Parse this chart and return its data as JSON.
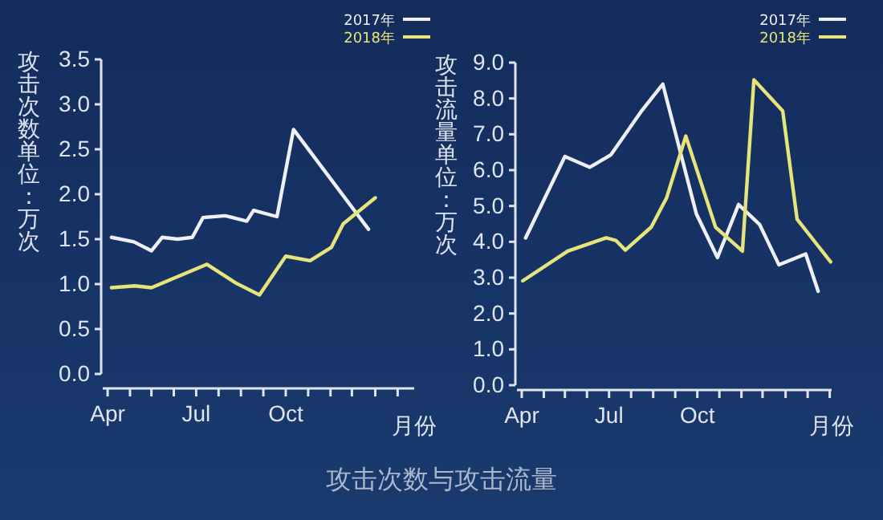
{
  "chart_data": [
    {
      "type": "line",
      "title": "攻击次数与攻击流量",
      "ylabel": "攻击次数单位：万次",
      "xlabel": "月份",
      "legend": "top right",
      "xlim": [
        "2017-03-27",
        "2018-02-10"
      ],
      "xticks": [
        {
          "value": "2017-04-01",
          "label": "Apr"
        },
        {
          "value": "2017-04-24",
          "label": null
        },
        {
          "value": "2017-05-16",
          "label": null
        },
        {
          "value": "2017-06-08",
          "label": null
        },
        {
          "value": "2017-07-01",
          "label": "Jul"
        },
        {
          "value": "2017-07-24",
          "label": null
        },
        {
          "value": "2017-08-16",
          "label": null
        },
        {
          "value": "2017-09-08",
          "label": null
        },
        {
          "value": "2017-10-01",
          "label": "Oct"
        },
        {
          "value": "2017-10-24",
          "label": null
        },
        {
          "value": "2017-11-16",
          "label": null
        },
        {
          "value": "2017-12-08",
          "label": null
        },
        {
          "value": "2018-01-01",
          "label": null
        },
        {
          "value": "2018-01-24",
          "label": null
        }
      ],
      "ylim": [
        0,
        3.5
      ],
      "yticks": [
        {
          "value": 0,
          "label": "0.0"
        },
        {
          "value": 0.5,
          "label": "0.5"
        },
        {
          "value": 1,
          "label": "1.0"
        },
        {
          "value": 1.5,
          "label": "1.5"
        },
        {
          "value": 2,
          "label": "2.0"
        },
        {
          "value": 2.5,
          "label": "2.5"
        },
        {
          "value": 3,
          "label": "3.0"
        },
        {
          "value": 3.5,
          "label": "3.5"
        }
      ],
      "series": [
        {
          "name": "2017年",
          "color": "#eef0f6",
          "x": [
            "2017-04-05",
            "2017-04-28",
            "2017-05-16",
            "2017-05-27",
            "2017-06-12",
            "2017-06-27",
            "2017-07-08",
            "2017-07-31",
            "2017-08-22",
            "2017-08-29",
            "2017-09-22",
            "2017-10-09",
            "2017-12-25"
          ],
          "values": [
            1.52,
            1.47,
            1.37,
            1.52,
            1.5,
            1.52,
            1.74,
            1.76,
            1.7,
            1.82,
            1.75,
            2.72,
            1.61
          ]
        },
        {
          "name": "2018年",
          "color": "#e6e47a",
          "x": [
            "2017-04-05",
            "2017-04-29",
            "2017-05-16",
            "2017-07-12",
            "2017-08-11",
            "2017-09-04",
            "2017-10-01",
            "2017-10-26",
            "2017-11-17",
            "2017-11-29",
            "2018-01-01"
          ],
          "values": [
            0.96,
            0.98,
            0.96,
            1.22,
            1.01,
            0.88,
            1.31,
            1.26,
            1.41,
            1.67,
            1.96
          ]
        }
      ]
    },
    {
      "type": "line",
      "ylabel": "攻击流量单位：万次",
      "xlabel": "月份",
      "legend": "top right",
      "xlim": [
        "2017-03-27",
        "2018-02-18"
      ],
      "xticks": [
        {
          "value": "2017-04-01",
          "label": "Apr"
        },
        {
          "value": "2017-04-24",
          "label": null
        },
        {
          "value": "2017-05-16",
          "label": null
        },
        {
          "value": "2017-06-08",
          "label": null
        },
        {
          "value": "2017-07-01",
          "label": "Jul"
        },
        {
          "value": "2017-07-24",
          "label": null
        },
        {
          "value": "2017-08-16",
          "label": null
        },
        {
          "value": "2017-09-08",
          "label": null
        },
        {
          "value": "2017-10-01",
          "label": "Oct"
        },
        {
          "value": "2017-10-24",
          "label": null
        },
        {
          "value": "2017-11-16",
          "label": null
        },
        {
          "value": "2017-12-08",
          "label": null
        },
        {
          "value": "2018-01-01",
          "label": null
        },
        {
          "value": "2018-01-24",
          "label": null
        },
        {
          "value": "2018-02-16",
          "label": null
        }
      ],
      "ylim": [
        0,
        9
      ],
      "yticks": [
        {
          "value": 0,
          "label": "0.0"
        },
        {
          "value": 1,
          "label": "1.0"
        },
        {
          "value": 2,
          "label": "2.0"
        },
        {
          "value": 3,
          "label": "3.0"
        },
        {
          "value": 4,
          "label": "4.0"
        },
        {
          "value": 5,
          "label": "5.0"
        },
        {
          "value": 6,
          "label": "6.0"
        },
        {
          "value": 7,
          "label": "7.0"
        },
        {
          "value": 8,
          "label": "8.0"
        },
        {
          "value": 9,
          "label": "9.0"
        }
      ],
      "series": [
        {
          "name": "2017年",
          "color": "#eef0f6",
          "x": [
            "2017-04-05",
            "2017-05-16",
            "2017-06-11",
            "2017-07-03",
            "2017-08-03",
            "2017-08-26",
            "2017-09-30",
            "2017-10-22",
            "2017-11-13",
            "2017-12-05",
            "2017-12-25",
            "2018-01-22",
            "2018-02-04"
          ],
          "values": [
            4.11,
            6.38,
            6.08,
            6.43,
            7.62,
            8.4,
            4.78,
            3.56,
            5.04,
            4.48,
            3.36,
            3.66,
            2.62
          ]
        },
        {
          "name": "2018年",
          "color": "#e6e47a",
          "x": [
            "2017-04-02",
            "2017-05-19",
            "2017-06-28",
            "2017-07-08",
            "2017-07-18",
            "2017-08-14",
            "2017-08-30",
            "2017-09-19",
            "2017-10-20",
            "2017-11-17",
            "2017-11-29",
            "2017-12-29",
            "2018-01-13",
            "2018-02-17"
          ],
          "values": [
            2.91,
            3.74,
            4.11,
            4.04,
            3.77,
            4.41,
            5.23,
            6.95,
            4.41,
            3.74,
            8.52,
            7.65,
            4.63,
            3.44
          ]
        }
      ]
    }
  ]
}
